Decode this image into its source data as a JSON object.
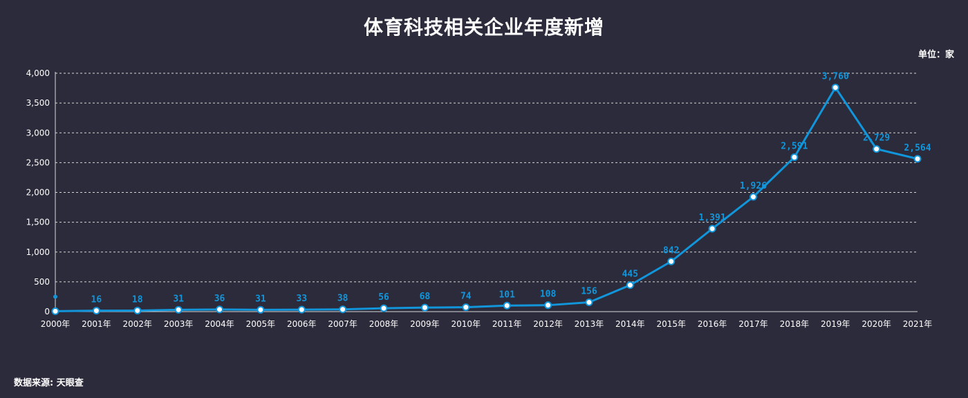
{
  "title": "体育科技相关企业年度新增",
  "unit_label": "单位：家",
  "source_label": "数据来源: 天眼查",
  "chart_data": {
    "type": "line",
    "title": "体育科技相关企业年度新增",
    "xlabel": "",
    "ylabel": "",
    "ylim": [
      0,
      4000
    ],
    "yticks": [
      0,
      500,
      1000,
      1500,
      2000,
      2500,
      3000,
      3500,
      4000
    ],
    "ytick_labels": [
      "0",
      "500",
      "1,000",
      "1,500",
      "2,000",
      "2,500",
      "3,000",
      "3,500",
      "4,000"
    ],
    "categories": [
      "2000年",
      "2001年",
      "2002年",
      "2003年",
      "2004年",
      "2005年",
      "2006年",
      "2007年",
      "2008年",
      "2009年",
      "2010年",
      "2011年",
      "2012年",
      "2013年",
      "2014年",
      "2015年",
      "2016年",
      "2017年",
      "2018年",
      "2019年",
      "2020年",
      "2021年"
    ],
    "series": [
      {
        "name": "年度新增",
        "values": [
          7,
          16,
          18,
          31,
          36,
          31,
          33,
          38,
          56,
          68,
          74,
          101,
          108,
          156,
          445,
          842,
          1391,
          1926,
          2591,
          3760,
          2729,
          2564
        ],
        "data_labels": [
          "",
          "16",
          "18",
          "31",
          "36",
          "31",
          "33",
          "38",
          "56",
          "68",
          "74",
          "101",
          "108",
          "156",
          "445",
          "842",
          "1,391",
          "1,926",
          "2,591",
          "3,760",
          "2,729",
          "2,564"
        ]
      }
    ],
    "grid": true,
    "line_color": "#1296db"
  }
}
